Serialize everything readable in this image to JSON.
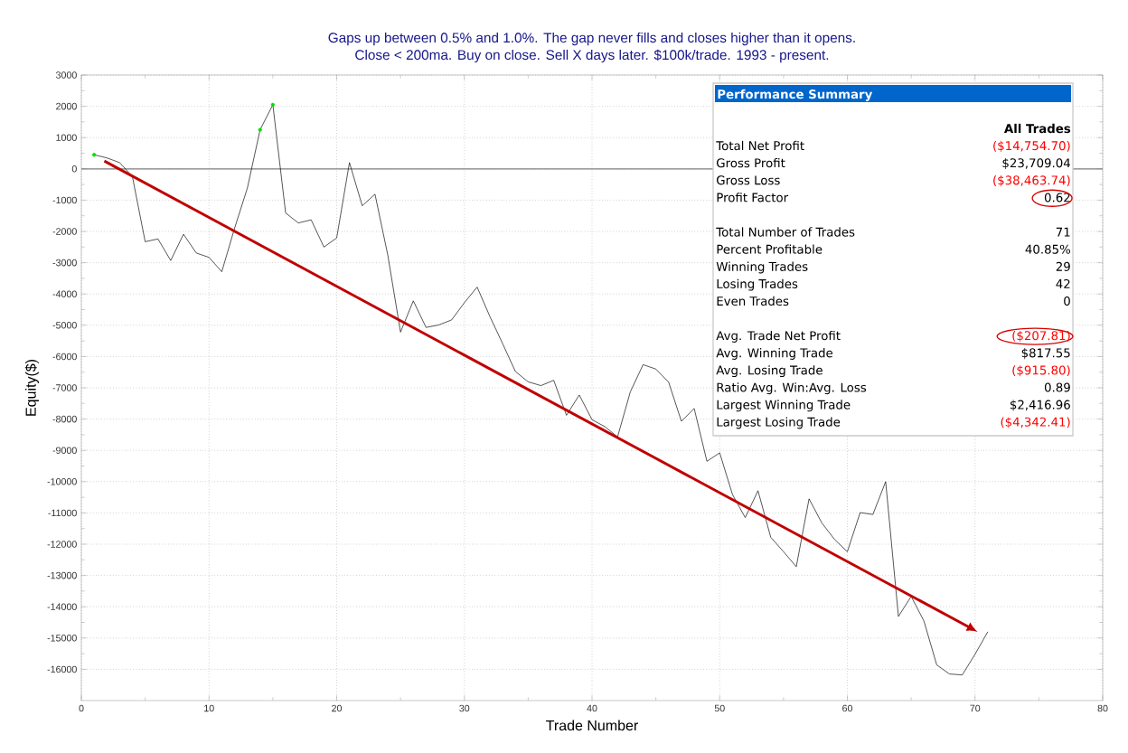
{
  "chart_data": [
    {
      "type": "line",
      "title": "Gaps up between 0.5% and 1.0%. The gap never fills and closes higher than it opens.",
      "subtitle": "Close < 200ma. Buy on close. Sell X days later. $100k/trade. 1993 - present.",
      "xlabel": "Trade Number",
      "ylabel": "Equity($)",
      "xlim": [
        0,
        80
      ],
      "xticks": [
        0,
        10,
        20,
        30,
        40,
        50,
        60,
        70,
        80
      ],
      "ylim": [
        -17000,
        3000
      ],
      "yticks": [
        -16000,
        -15000,
        -14000,
        -13000,
        -12000,
        -11000,
        -10000,
        -9000,
        -8000,
        -7000,
        -6000,
        -5000,
        -4000,
        -3000,
        -2000,
        -1000,
        0,
        1000,
        2000,
        3000
      ],
      "grid": true,
      "legend": false,
      "marker": "none",
      "line_style": "solid",
      "ref_lines": [
        {
          "axis": "y",
          "value": 0,
          "color": "#808080"
        }
      ],
      "series": [
        {
          "color": "#000000",
          "x": [
            1,
            2,
            3,
            4,
            5,
            6,
            7,
            8,
            9,
            10,
            11,
            12,
            13,
            14,
            15,
            16,
            17,
            18,
            19,
            20,
            21,
            22,
            23,
            24,
            25,
            26,
            27,
            28,
            29,
            30,
            31,
            32,
            33,
            34,
            35,
            36,
            37,
            38,
            39,
            40,
            41,
            42,
            43,
            44,
            45,
            46,
            47,
            48,
            49,
            50,
            51,
            52,
            53,
            54,
            55,
            56,
            57,
            58,
            59,
            60,
            61,
            62,
            63,
            64,
            65,
            66,
            67,
            68,
            69,
            70,
            71
          ],
          "values": [
            450,
            350,
            200,
            -250,
            -2330,
            -2240,
            -2930,
            -2090,
            -2690,
            -2830,
            -3290,
            -1900,
            -620,
            1250,
            2050,
            -1410,
            -1730,
            -1630,
            -2500,
            -2210,
            200,
            -1180,
            -810,
            -2750,
            -5220,
            -4220,
            -5070,
            -4990,
            -4830,
            -4280,
            -3780,
            -4720,
            -5590,
            -6480,
            -6810,
            -6930,
            -6760,
            -7880,
            -7230,
            -8020,
            -8240,
            -8570,
            -7130,
            -6260,
            -6400,
            -6820,
            -8070,
            -7660,
            -9350,
            -9080,
            -10410,
            -11150,
            -10290,
            -11780,
            -12240,
            -12720,
            -10550,
            -11320,
            -11850,
            -12240,
            -10990,
            -11050,
            -10000,
            -14310,
            -13670,
            -14460,
            -15860,
            -16150,
            -16180,
            -15520,
            -14800
          ]
        },
        {
          "type": "scatter",
          "color": "#00e000",
          "x": [
            1,
            14,
            15
          ],
          "values": [
            450,
            1250,
            2050
          ]
        }
      ]
    },
    {
      "type": "other",
      "title": "Performance Summary",
      "subtitle": "All Trades",
      "categories": [
        "Total Net Profit",
        "Gross Profit",
        "Gross Loss",
        "Profit Factor",
        "Total Number of Trades",
        "Percent Profitable",
        "Winning Trades",
        "Losing Trades",
        "Even Trades",
        "Avg. Trade Net Profit",
        "Avg. Winning Trade",
        "Avg. Losing Trade",
        "Ratio Avg. Win:Avg. Loss",
        "Largest Winning Trade",
        "Largest Losing Trade"
      ],
      "value_labels": [
        "($14,754.70)",
        "$23,709.04",
        "($38,463.74)",
        "0.62",
        "71",
        "40.85%",
        "29",
        "42",
        "0",
        "($207.81)",
        "$817.55",
        "($915.80)",
        "0.89",
        "$2,416.96",
        "($4,342.41)"
      ],
      "colors": [
        "#ff0000",
        "#000000",
        "#ff0000",
        "#000000",
        "#000000",
        "#000000",
        "#000000",
        "#000000",
        "#000000",
        "#ff0000",
        "#000000",
        "#ff0000",
        "#000000",
        "#000000",
        "#ff0000"
      ]
    }
  ]
}
